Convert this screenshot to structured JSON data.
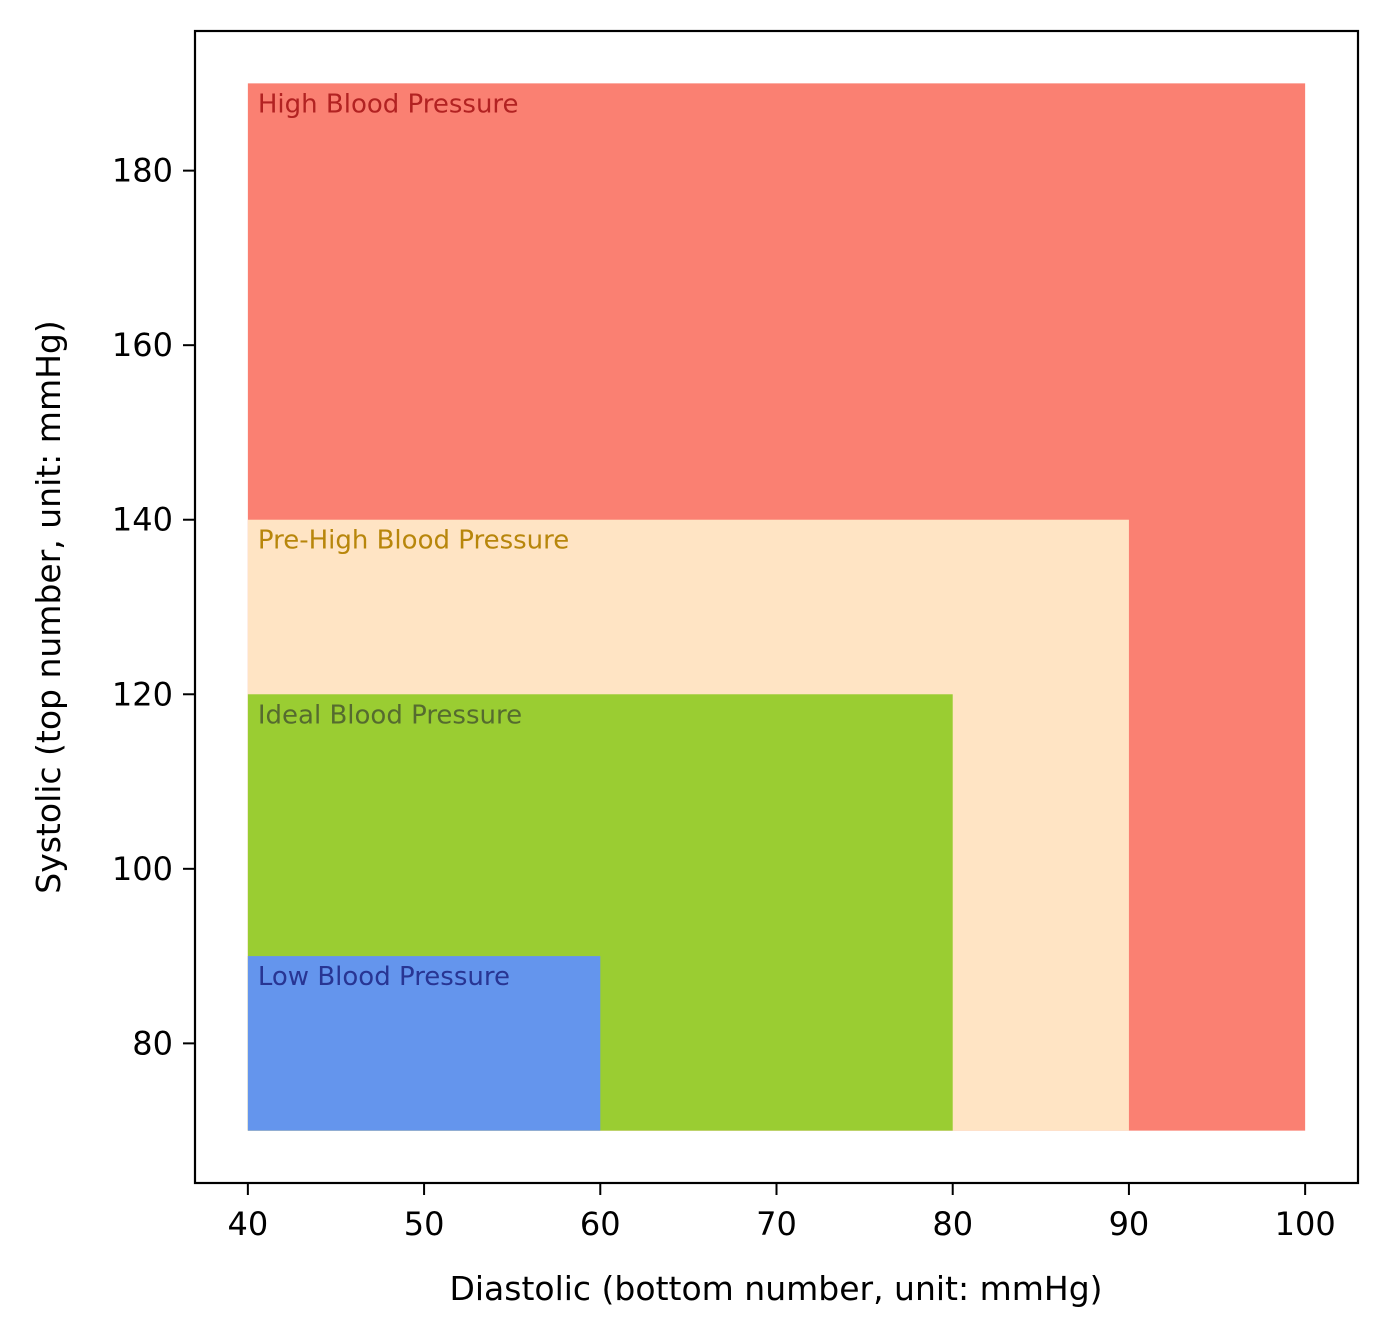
{
  "chart_data": {
    "type": "area",
    "xlabel": "Diastolic (bottom number, unit: mmHg)",
    "ylabel": "Systolic (top number, unit: mmHg)",
    "xlim": [
      37,
      103
    ],
    "ylim": [
      64,
      196
    ],
    "xticks": [
      "40",
      "50",
      "60",
      "70",
      "80",
      "90",
      "100"
    ],
    "yticks": [
      "80",
      "100",
      "120",
      "140",
      "160",
      "180"
    ],
    "grid": false,
    "regions": [
      {
        "name": "High Blood Pressure",
        "x": [
          40,
          100
        ],
        "y": [
          70,
          190
        ],
        "fill": "#fa8072",
        "label_color": "#b22222"
      },
      {
        "name": "Pre-High Blood Pressure",
        "x": [
          40,
          90
        ],
        "y": [
          70,
          140
        ],
        "fill": "#ffe4c4",
        "label_color": "#b8860b"
      },
      {
        "name": "Ideal Blood Pressure",
        "x": [
          40,
          80
        ],
        "y": [
          70,
          120
        ],
        "fill": "#9acd32",
        "label_color": "#556b2f"
      },
      {
        "name": "Low Blood Pressure",
        "x": [
          40,
          60
        ],
        "y": [
          70,
          90
        ],
        "fill": "#6495ed",
        "label_color": "#283593"
      }
    ]
  }
}
